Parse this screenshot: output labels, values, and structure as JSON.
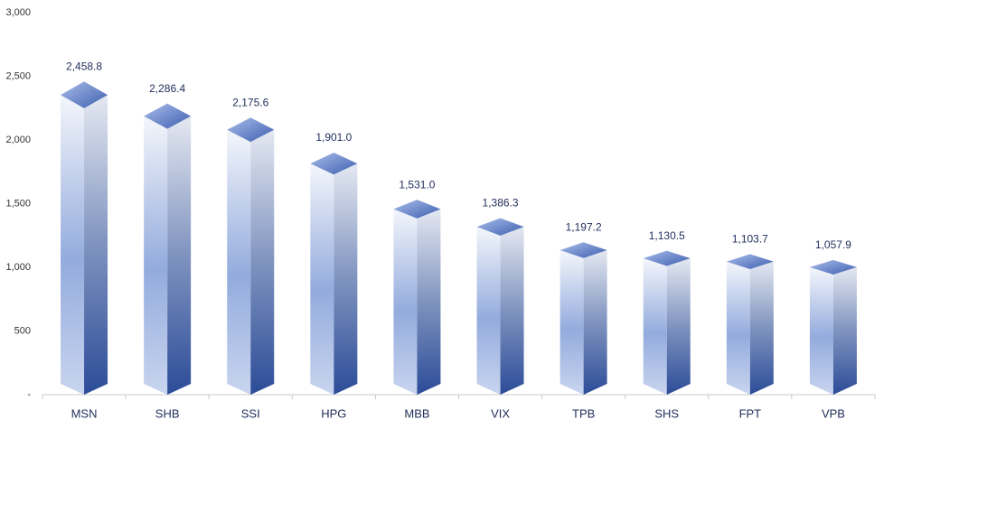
{
  "chart_data": {
    "type": "bar3d",
    "categories": [
      "MSN",
      "SHB",
      "SSI",
      "HPG",
      "MBB",
      "VIX",
      "TPB",
      "SHS",
      "FPT",
      "VPB"
    ],
    "values": [
      2458.8,
      2286.4,
      2175.6,
      1901.0,
      1531.0,
      1386.3,
      1197.2,
      1130.5,
      1103.7,
      1057.9
    ],
    "value_labels": [
      "2,458.8",
      "2,286.4",
      "2,175.6",
      "1,901.0",
      "1,531.0",
      "1,386.3",
      "1,197.2",
      "1,130.5",
      "1,103.7",
      "1,057.9"
    ],
    "color": "#3a5ba6",
    "ylim": [
      0,
      3000
    ],
    "yticks": [
      {
        "value": 0,
        "label": "-"
      },
      500,
      {
        "value": 1000,
        "label": "1,000"
      },
      {
        "value": 1500,
        "label": "1,500"
      },
      {
        "value": 2000,
        "label": "2,000"
      },
      {
        "value": 2500,
        "label": "2,500"
      },
      {
        "value": 3000,
        "label": "3,000"
      }
    ],
    "grid": false
  }
}
